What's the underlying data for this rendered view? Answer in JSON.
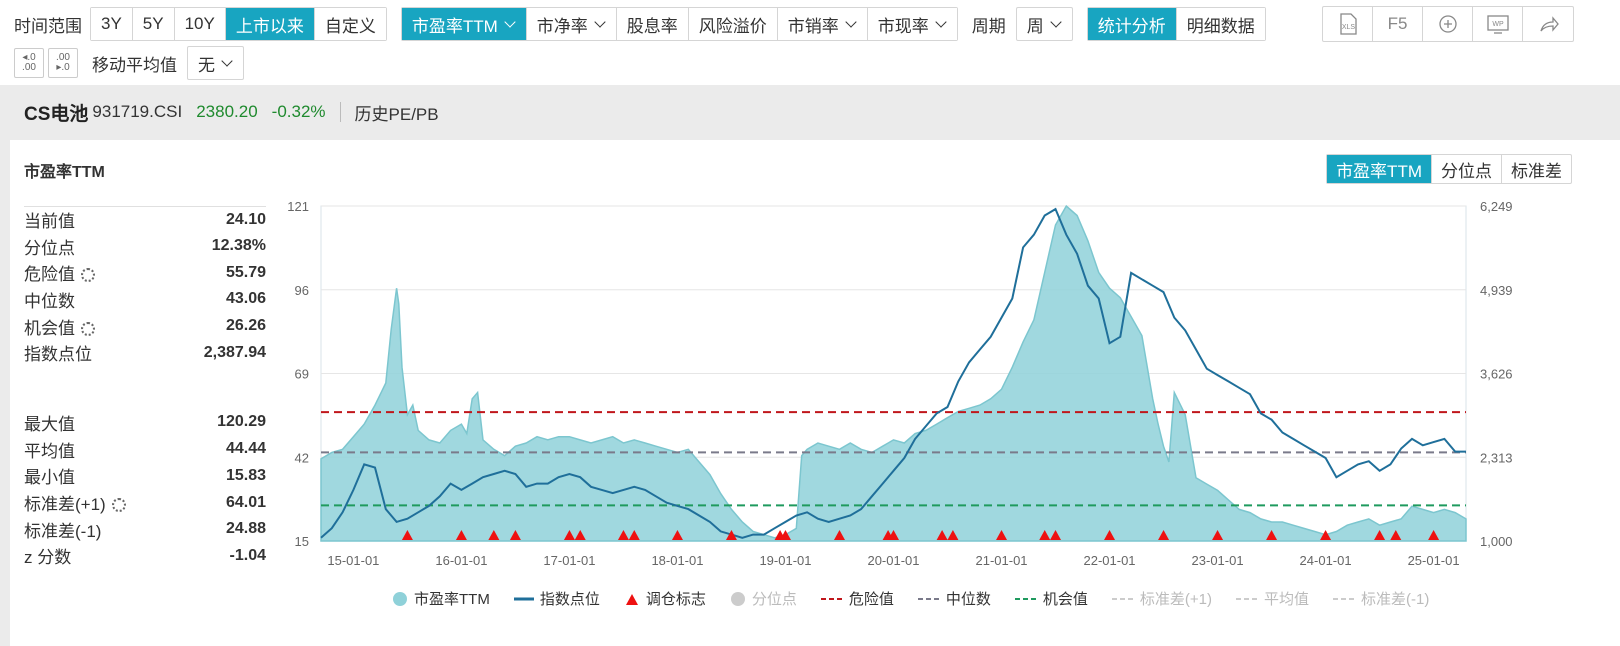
{
  "toolbar": {
    "time_range_label": "时间范围",
    "time_ranges": [
      "3Y",
      "5Y",
      "10Y",
      "上市以来",
      "自定义"
    ],
    "metrics": [
      "市盈率TTM",
      "市净率",
      "股息率",
      "风险溢价",
      "市销率",
      "市现率"
    ],
    "period_label": "周期",
    "period_value": "周",
    "views": [
      "统计分析",
      "明细数据"
    ],
    "icons": [
      "xls-icon",
      "F5",
      "zoom-icon",
      "wp-icon",
      "share-icon"
    ],
    "f5_label": "F5",
    "moving_avg_label": "移动平均值",
    "moving_avg_value": "无"
  },
  "index": {
    "name": "CS电池",
    "code": "931719.CSI",
    "point": "2380.20",
    "change": "-0.32%",
    "history": "历史PE/PB"
  },
  "panel": {
    "title": "市盈率TTM",
    "tabs": [
      "市盈率TTM",
      "分位点",
      "标准差"
    ],
    "stats": [
      {
        "label": "当前值",
        "value": "24.10",
        "gear": false
      },
      {
        "label": "分位点",
        "value": "12.38%",
        "gear": false
      },
      {
        "label": "危险值",
        "value": "55.79",
        "gear": true
      },
      {
        "label": "中位数",
        "value": "43.06",
        "gear": false
      },
      {
        "label": "机会值",
        "value": "26.26",
        "gear": true
      },
      {
        "label": "指数点位",
        "value": "2,387.94",
        "gear": false
      }
    ],
    "stats2": [
      {
        "label": "最大值",
        "value": "120.29",
        "gear": false
      },
      {
        "label": "平均值",
        "value": "44.44",
        "gear": false
      },
      {
        "label": "最小值",
        "value": "15.83",
        "gear": false
      },
      {
        "label": "标准差(+1)",
        "value": "64.01",
        "gear": true
      },
      {
        "label": "标准差(-1)",
        "value": "24.88",
        "gear": false
      },
      {
        "label": "z 分数",
        "value": "-1.04",
        "gear": false
      }
    ]
  },
  "colors": {
    "accent": "#18a5c1",
    "pe_fill": "#8fd1d9",
    "pe_line": "#7cc6cf",
    "index_line": "#1f6f9a",
    "danger": "#c0161b",
    "median": "#7a7a8a",
    "chance": "#1f9a5e",
    "marker": "#ee1111"
  },
  "chart_data": {
    "type": "area",
    "x_ticks": [
      "15-01-01",
      "16-01-01",
      "17-01-01",
      "18-01-01",
      "19-01-01",
      "20-01-01",
      "21-01-01",
      "22-01-01",
      "23-01-01",
      "24-01-01",
      "25-01-01"
    ],
    "y_left_ticks": [
      "121",
      "96",
      "69",
      "42",
      "15"
    ],
    "y_left_range": [
      15,
      121
    ],
    "y_right_ticks": [
      "6,249",
      "4,939",
      "3,626",
      "2,313",
      "1,000"
    ],
    "y_right_range": [
      1000,
      6249
    ],
    "x_range": [
      2014.7,
      2025.3
    ],
    "reference_lines": {
      "danger": 55.79,
      "median": 43.06,
      "chance": 26.26
    },
    "series": [
      {
        "name": "市盈率TTM",
        "x": [
          2014.7,
          2014.8,
          2014.9,
          2015.0,
          2015.1,
          2015.2,
          2015.3,
          2015.35,
          2015.4,
          2015.42,
          2015.45,
          2015.5,
          2015.55,
          2015.6,
          2015.7,
          2015.8,
          2015.9,
          2016.0,
          2016.05,
          2016.1,
          2016.15,
          2016.2,
          2016.3,
          2016.4,
          2016.5,
          2016.6,
          2016.7,
          2016.8,
          2016.9,
          2017.0,
          2017.1,
          2017.2,
          2017.3,
          2017.4,
          2017.5,
          2017.6,
          2017.7,
          2017.8,
          2017.9,
          2018.0,
          2018.1,
          2018.2,
          2018.3,
          2018.4,
          2018.5,
          2018.6,
          2018.7,
          2018.8,
          2018.9,
          2019.0,
          2019.1,
          2019.15,
          2019.2,
          2019.3,
          2019.4,
          2019.5,
          2019.6,
          2019.7,
          2019.8,
          2019.9,
          2020.0,
          2020.1,
          2020.2,
          2020.3,
          2020.4,
          2020.5,
          2020.6,
          2020.7,
          2020.8,
          2020.9,
          2021.0,
          2021.1,
          2021.2,
          2021.3,
          2021.4,
          2021.5,
          2021.6,
          2021.7,
          2021.8,
          2021.9,
          2022.0,
          2022.1,
          2022.2,
          2022.3,
          2022.4,
          2022.45,
          2022.5,
          2022.55,
          2022.6,
          2022.7,
          2022.8,
          2022.9,
          2023.0,
          2023.1,
          2023.2,
          2023.3,
          2023.4,
          2023.5,
          2023.6,
          2023.7,
          2023.8,
          2023.9,
          2024.0,
          2024.1,
          2024.2,
          2024.3,
          2024.4,
          2024.5,
          2024.6,
          2024.7,
          2024.8,
          2024.9,
          2025.0,
          2025.1,
          2025.2,
          2025.3
        ],
        "y": [
          41,
          43,
          44,
          48,
          52,
          58,
          65,
          82,
          95,
          90,
          70,
          55,
          58,
          50,
          47,
          46,
          50,
          52,
          49,
          60,
          62,
          47,
          44,
          42,
          45,
          46,
          48,
          47,
          48,
          48,
          47,
          46,
          47,
          48,
          46,
          47,
          46,
          45,
          44,
          43,
          44,
          40,
          36,
          30,
          25,
          21,
          18,
          17,
          16,
          17,
          19,
          42,
          44,
          46,
          45,
          44,
          46,
          44,
          43,
          45,
          47,
          46,
          49,
          50,
          52,
          54,
          56,
          57,
          58,
          60,
          63,
          70,
          78,
          85,
          100,
          115,
          122,
          118,
          110,
          100,
          95,
          92,
          86,
          80,
          60,
          52,
          45,
          40,
          62,
          55,
          35,
          33,
          31,
          28,
          25,
          24,
          22,
          21,
          21,
          20,
          19,
          18,
          17,
          18,
          20,
          21,
          22,
          20,
          21,
          22,
          26,
          25,
          24,
          25,
          24,
          22
        ]
      },
      {
        "name": "指数点位",
        "x": [
          2014.7,
          2014.8,
          2014.9,
          2015.0,
          2015.1,
          2015.2,
          2015.3,
          2015.4,
          2015.5,
          2015.6,
          2015.7,
          2015.8,
          2015.9,
          2016.0,
          2016.1,
          2016.2,
          2016.3,
          2016.4,
          2016.5,
          2016.6,
          2016.7,
          2016.8,
          2016.9,
          2017.0,
          2017.1,
          2017.2,
          2017.3,
          2017.4,
          2017.5,
          2017.6,
          2017.7,
          2017.8,
          2017.9,
          2018.0,
          2018.1,
          2018.2,
          2018.3,
          2018.4,
          2018.5,
          2018.6,
          2018.7,
          2018.8,
          2018.9,
          2019.0,
          2019.1,
          2019.2,
          2019.3,
          2019.4,
          2019.5,
          2019.6,
          2019.7,
          2019.8,
          2019.9,
          2020.0,
          2020.1,
          2020.2,
          2020.3,
          2020.4,
          2020.5,
          2020.6,
          2020.7,
          2020.8,
          2020.9,
          2021.0,
          2021.1,
          2021.2,
          2021.3,
          2021.4,
          2021.5,
          2021.6,
          2021.7,
          2021.8,
          2021.9,
          2022.0,
          2022.1,
          2022.2,
          2022.3,
          2022.4,
          2022.5,
          2022.6,
          2022.7,
          2022.8,
          2022.9,
          2023.0,
          2023.1,
          2023.2,
          2023.3,
          2023.4,
          2023.5,
          2023.6,
          2023.7,
          2023.8,
          2023.9,
          2024.0,
          2024.1,
          2024.2,
          2024.3,
          2024.4,
          2024.5,
          2024.6,
          2024.7,
          2024.8,
          2024.9,
          2025.0,
          2025.1,
          2025.2,
          2025.3
        ],
        "y": [
          1050,
          1200,
          1450,
          1800,
          2200,
          2150,
          1500,
          1300,
          1350,
          1450,
          1550,
          1700,
          1900,
          1800,
          1900,
          2000,
          2050,
          2100,
          2050,
          1850,
          1900,
          1900,
          2000,
          2050,
          2000,
          1850,
          1800,
          1750,
          1800,
          1850,
          1800,
          1700,
          1600,
          1550,
          1500,
          1400,
          1300,
          1150,
          1100,
          1050,
          1100,
          1100,
          1200,
          1300,
          1400,
          1450,
          1350,
          1300,
          1350,
          1400,
          1500,
          1700,
          1900,
          2100,
          2300,
          2600,
          2800,
          3000,
          3100,
          3500,
          3800,
          4000,
          4200,
          4500,
          4800,
          5600,
          5800,
          6100,
          6200,
          5800,
          5500,
          5000,
          4800,
          4100,
          4200,
          5200,
          5100,
          5000,
          4900,
          4500,
          4300,
          4000,
          3700,
          3600,
          3500,
          3400,
          3300,
          3000,
          2900,
          2700,
          2600,
          2500,
          2400,
          2300,
          2000,
          2100,
          2200,
          2250,
          2100,
          2200,
          2450,
          2600,
          2500,
          2550,
          2600,
          2400,
          2400
        ]
      }
    ],
    "rebalance_markers_x": [
      2015.5,
      2016.0,
      2016.3,
      2016.5,
      2017.0,
      2017.1,
      2017.5,
      2017.6,
      2018.0,
      2018.5,
      2018.95,
      2019.0,
      2019.5,
      2019.95,
      2020.0,
      2020.45,
      2020.55,
      2021.0,
      2021.4,
      2021.5,
      2022.0,
      2022.5,
      2023.0,
      2023.5,
      2024.0,
      2024.5,
      2024.65,
      2025.0
    ],
    "legend": [
      "市盈率TTM",
      "指数点位",
      "调仓标志",
      "分位点",
      "危险值",
      "中位数",
      "机会值",
      "标准差(+1)",
      "平均值",
      "标准差(-1)"
    ]
  }
}
